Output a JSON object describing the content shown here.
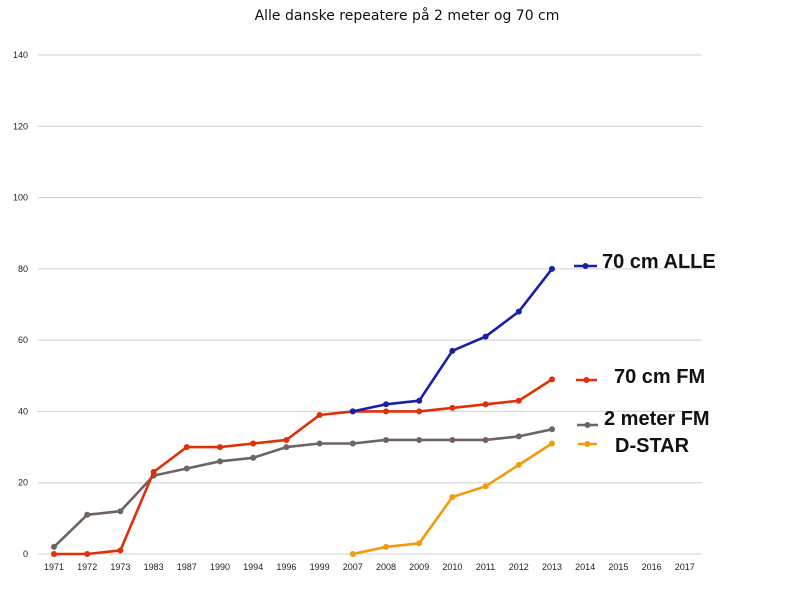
{
  "chart_data": {
    "type": "line",
    "title": "Alle danske repeatere på 2 meter og 70 cm",
    "xlabel": "",
    "ylabel": "",
    "categories": [
      "1971",
      "1972",
      "1973",
      "1983",
      "1987",
      "1990",
      "1994",
      "1996",
      "1999",
      "2007",
      "2008",
      "2009",
      "2010",
      "2011",
      "2012",
      "2013",
      "2014",
      "2015",
      "2016",
      "2017"
    ],
    "y_ticks": [
      "0",
      "20",
      "40",
      "60",
      "80",
      "100",
      "120",
      "140"
    ],
    "ylim": [
      0,
      140
    ],
    "grid": true,
    "legend_position": "right",
    "series": [
      {
        "name": "70 cm ALLE",
        "color": "#1a1fa6",
        "values": [
          null,
          null,
          null,
          null,
          null,
          null,
          null,
          null,
          null,
          40,
          42,
          43,
          57,
          61,
          68,
          80,
          null,
          null,
          null,
          null
        ]
      },
      {
        "name": "70 cm FM",
        "color": "#e0300a",
        "values": [
          0,
          0,
          1,
          23,
          30,
          30,
          31,
          32,
          39,
          40,
          40,
          40,
          41,
          42,
          43,
          49,
          null,
          null,
          null,
          null
        ]
      },
      {
        "name": "2 meter FM",
        "color": "#6e6560",
        "values": [
          2,
          11,
          12,
          22,
          24,
          26,
          27,
          30,
          31,
          31,
          32,
          32,
          32,
          32,
          33,
          35,
          null,
          null,
          null,
          null
        ]
      },
      {
        "name": "D-STAR",
        "color": "#f59a0c",
        "values": [
          null,
          null,
          null,
          null,
          null,
          null,
          null,
          null,
          null,
          0,
          2,
          3,
          16,
          19,
          25,
          31,
          null,
          null,
          null,
          null
        ]
      }
    ]
  }
}
